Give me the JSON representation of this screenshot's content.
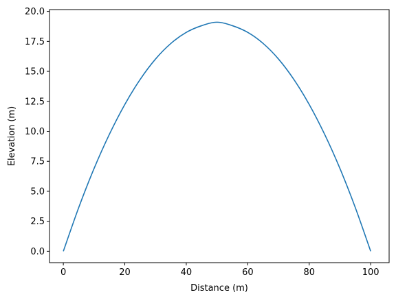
{
  "chart_data": {
    "type": "line",
    "title": "",
    "xlabel": "Distance (m)",
    "ylabel": "Elevation (m)",
    "xlim": [
      -4.5,
      106
    ],
    "ylim": [
      -0.95,
      20.15
    ],
    "x_ticks": [
      0,
      20,
      40,
      60,
      80,
      100
    ],
    "x_tick_labels": [
      "0",
      "20",
      "40",
      "60",
      "80",
      "100"
    ],
    "y_ticks": [
      0,
      2.5,
      5,
      7.5,
      10,
      12.5,
      15,
      17.5,
      20
    ],
    "y_tick_labels": [
      "0.0",
      "2.5",
      "5.0",
      "7.5",
      "10.0",
      "12.5",
      "15.0",
      "17.5",
      "20.0"
    ],
    "grid": false,
    "legend": "none",
    "line_color": "#1f77b4",
    "series": [
      {
        "x": [
          0,
          5,
          10,
          15,
          20,
          25,
          30,
          35,
          40,
          45,
          50,
          55,
          60,
          65,
          70,
          75,
          80,
          85,
          90,
          95,
          100
        ],
        "y": [
          0,
          3.64,
          6.9,
          9.76,
          12.24,
          14.33,
          16.03,
          17.33,
          18.25,
          18.81,
          19.1,
          18.81,
          18.25,
          17.33,
          16.03,
          14.33,
          12.24,
          9.76,
          6.9,
          3.64,
          0
        ]
      }
    ]
  }
}
